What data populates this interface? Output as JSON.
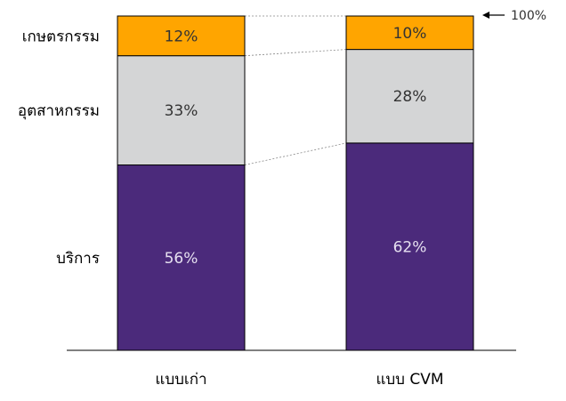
{
  "chart_data": {
    "type": "bar",
    "stacked": true,
    "normalized": true,
    "categories": [
      "แบบเก่า",
      "แบบ CVM"
    ],
    "series": [
      {
        "name": "บริการ",
        "values": [
          56,
          62
        ],
        "labels": [
          "56%",
          "62%"
        ],
        "color": "#4B2A7B",
        "label_color": "#E6E0F0"
      },
      {
        "name": "อุตสาหกรรม",
        "values": [
          33,
          28
        ],
        "labels": [
          "33%",
          "28%"
        ],
        "color": "#D4D5D6",
        "label_color": "#333333"
      },
      {
        "name": "เกษตรกรรม",
        "values": [
          12,
          10
        ],
        "labels": [
          "12%",
          "10%"
        ],
        "color": "#FFA500",
        "label_color": "#333333"
      }
    ],
    "ylim": [
      0,
      100
    ],
    "annotation": "100%",
    "title": "",
    "xlabel": "",
    "ylabel": "",
    "grid": false,
    "legend": "none"
  }
}
